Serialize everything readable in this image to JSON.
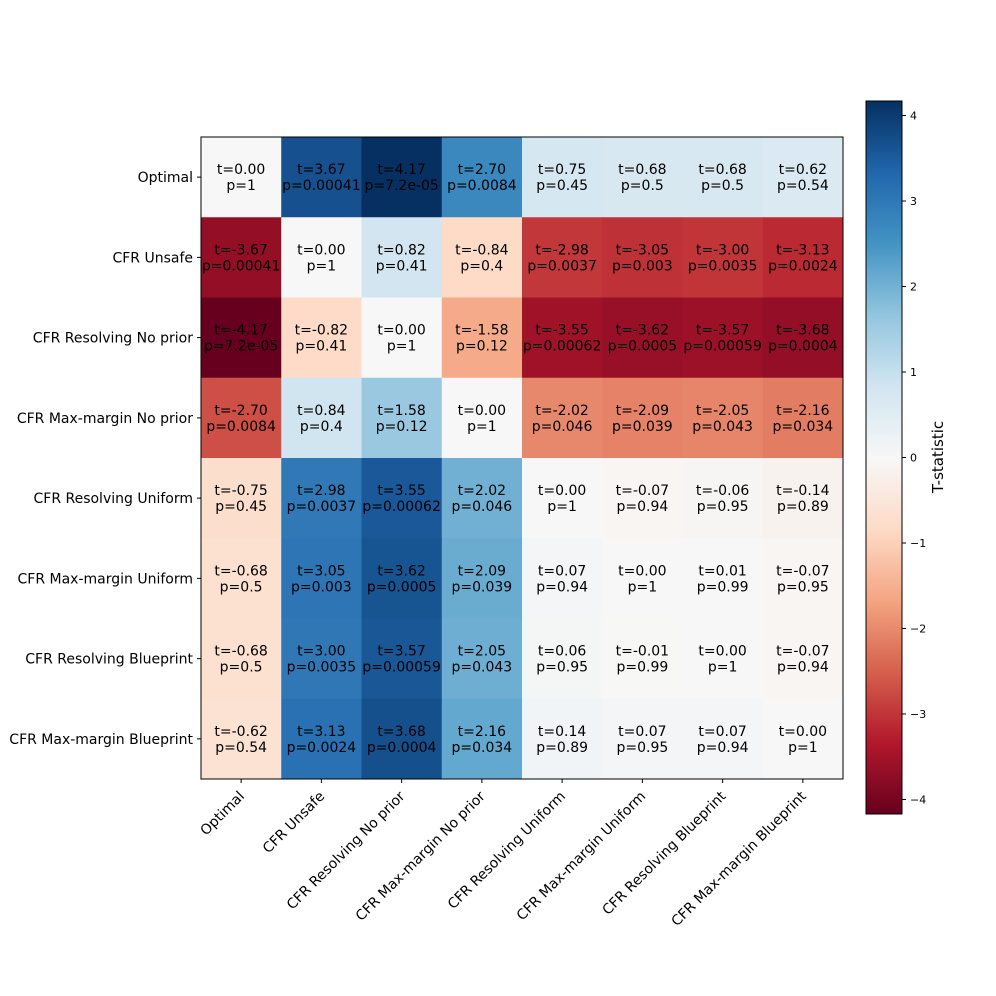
{
  "chart_data": {
    "type": "heatmap",
    "row_labels": [
      "Optimal",
      "CFR Unsafe",
      "CFR Resolving No prior",
      "CFR Max-margin No prior",
      "CFR Resolving Uniform",
      "CFR Max-margin Uniform",
      "CFR Resolving Blueprint",
      "CFR Max-margin Blueprint"
    ],
    "col_labels": [
      "Optimal",
      "CFR Unsafe",
      "CFR Resolving No prior",
      "CFR Max-margin No prior",
      "CFR Resolving Uniform",
      "CFR Max-margin Uniform",
      "CFR Resolving Blueprint",
      "CFR Max-margin Blueprint"
    ],
    "t_values": [
      [
        0.0,
        3.67,
        4.17,
        2.7,
        0.75,
        0.68,
        0.68,
        0.62
      ],
      [
        -3.67,
        0.0,
        0.82,
        -0.84,
        -2.98,
        -3.05,
        -3.0,
        -3.13
      ],
      [
        -4.17,
        -0.82,
        0.0,
        -1.58,
        -3.55,
        -3.62,
        -3.57,
        -3.68
      ],
      [
        -2.7,
        0.84,
        1.58,
        0.0,
        -2.02,
        -2.09,
        -2.05,
        -2.16
      ],
      [
        -0.75,
        2.98,
        3.55,
        2.02,
        0.0,
        -0.07,
        -0.06,
        -0.14
      ],
      [
        -0.68,
        3.05,
        3.62,
        2.09,
        0.07,
        0.0,
        0.01,
        -0.07
      ],
      [
        -0.68,
        3.0,
        3.57,
        2.05,
        0.06,
        -0.01,
        0.0,
        -0.07
      ],
      [
        -0.62,
        3.13,
        3.68,
        2.16,
        0.14,
        0.07,
        0.07,
        0.0
      ]
    ],
    "cell_text": [
      [
        "t=0.00\np=1",
        "t=3.67\np=0.00041",
        "t=4.17\np=7.2e-05",
        "t=2.70\np=0.0084",
        "t=0.75\np=0.45",
        "t=0.68\np=0.5",
        "t=0.68\np=0.5",
        "t=0.62\np=0.54"
      ],
      [
        "t=-3.67\np=0.00041",
        "t=0.00\np=1",
        "t=0.82\np=0.41",
        "t=-0.84\np=0.4",
        "t=-2.98\np=0.0037",
        "t=-3.05\np=0.003",
        "t=-3.00\np=0.0035",
        "t=-3.13\np=0.0024"
      ],
      [
        "t=-4.17\np=7.2e-05",
        "t=-0.82\np=0.41",
        "t=0.00\np=1",
        "t=-1.58\np=0.12",
        "t=-3.55\np=0.00062",
        "t=-3.62\np=0.0005",
        "t=-3.57\np=0.00059",
        "t=-3.68\np=0.0004"
      ],
      [
        "t=-2.70\np=0.0084",
        "t=0.84\np=0.4",
        "t=1.58\np=0.12",
        "t=0.00\np=1",
        "t=-2.02\np=0.046",
        "t=-2.09\np=0.039",
        "t=-2.05\np=0.043",
        "t=-2.16\np=0.034"
      ],
      [
        "t=-0.75\np=0.45",
        "t=2.98\np=0.0037",
        "t=3.55\np=0.00062",
        "t=2.02\np=0.046",
        "t=0.00\np=1",
        "t=-0.07\np=0.94",
        "t=-0.06\np=0.95",
        "t=-0.14\np=0.89"
      ],
      [
        "t=-0.68\np=0.5",
        "t=3.05\np=0.003",
        "t=3.62\np=0.0005",
        "t=2.09\np=0.039",
        "t=0.07\np=0.94",
        "t=0.00\np=1",
        "t=0.01\np=0.99",
        "t=-0.07\np=0.95"
      ],
      [
        "t=-0.68\np=0.5",
        "t=3.00\np=0.0035",
        "t=3.57\np=0.00059",
        "t=2.05\np=0.043",
        "t=0.06\np=0.95",
        "t=-0.01\np=0.99",
        "t=0.00\np=1",
        "t=-0.07\np=0.94"
      ],
      [
        "t=-0.62\np=0.54",
        "t=3.13\np=0.0024",
        "t=3.68\np=0.0004",
        "t=2.16\np=0.034",
        "t=0.14\np=0.89",
        "t=0.07\np=0.95",
        "t=0.07\np=0.94",
        "t=0.00\np=1"
      ]
    ],
    "colorbar": {
      "label": "T-statistic",
      "range": [
        -4.17,
        4.17
      ],
      "ticks": [
        4,
        3,
        2,
        1,
        0,
        -1,
        -2,
        -3,
        -4
      ],
      "tick_labels": [
        "4",
        "3",
        "2",
        "1",
        "0",
        "−1",
        "−2",
        "−3",
        "−4"
      ],
      "colormap": "RdBu",
      "stops": [
        "#67001f",
        "#b2182b",
        "#d6604d",
        "#f4a582",
        "#fddbc7",
        "#f7f7f7",
        "#d1e5f0",
        "#92c5de",
        "#4393c3",
        "#2166ac",
        "#053061"
      ]
    }
  }
}
